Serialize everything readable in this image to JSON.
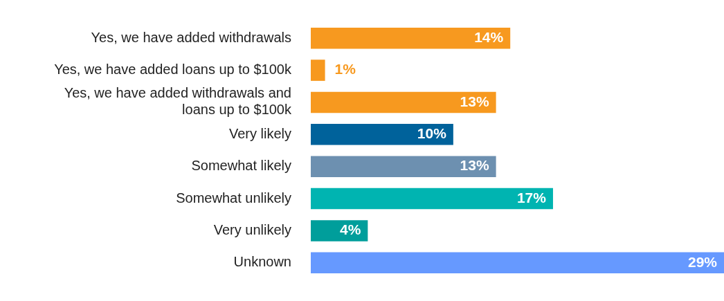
{
  "chart_data": {
    "type": "bar",
    "orientation": "horizontal",
    "categories": [
      "Yes, we have added withdrawals",
      "Yes, we have added loans up to $100k",
      "Yes, we have added withdrawals and loans up to $100k",
      "Very likely",
      "Somewhat likely",
      "Somewhat unlikely",
      "Very unlikely",
      "Unknown"
    ],
    "values": [
      14,
      1,
      13,
      10,
      13,
      17,
      4,
      29
    ],
    "colors": [
      "#f7991f",
      "#f7991f",
      "#f7991f",
      "#00629b",
      "#6d90b0",
      "#00b4b1",
      "#009e9b",
      "#6699ff"
    ],
    "value_labels": [
      "14%",
      "1%",
      "13%",
      "10%",
      "13%",
      "17%",
      "4%",
      "29%"
    ],
    "legend": false
  }
}
